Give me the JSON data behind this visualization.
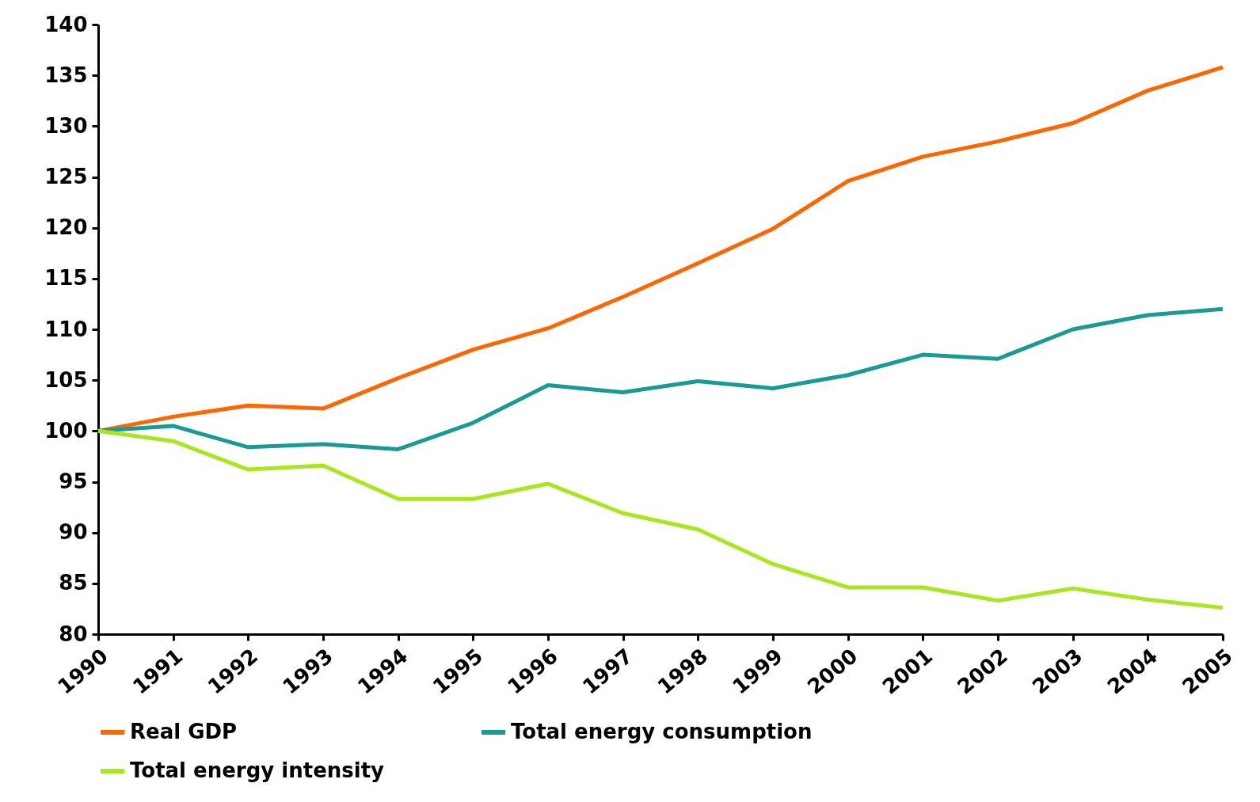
{
  "chart_data": {
    "type": "line",
    "x": [
      1990,
      1991,
      1992,
      1993,
      1994,
      1995,
      1996,
      1997,
      1998,
      1999,
      2000,
      2001,
      2002,
      2003,
      2004,
      2005
    ],
    "xlim": [
      1990,
      2005
    ],
    "xticks": [
      1990,
      1991,
      1992,
      1993,
      1994,
      1995,
      1996,
      1997,
      1998,
      1999,
      2000,
      2001,
      2002,
      2003,
      2004,
      2005
    ],
    "ylim": [
      80,
      140
    ],
    "yticks": [
      80,
      85,
      90,
      95,
      100,
      105,
      110,
      115,
      120,
      125,
      130,
      135,
      140
    ],
    "grid": false,
    "legend": "bottom",
    "marker": "none",
    "line_style": "solid",
    "series": [
      {
        "name": "Real GDP",
        "color": "#ff6600",
        "values": [
          100,
          101.4,
          102.5,
          102.2,
          105.2,
          108.0,
          110.1,
          113.2,
          116.5,
          119.9,
          124.6,
          127.0,
          128.5,
          130.3,
          133.5,
          135.8
        ]
      },
      {
        "name": "Total energy consumption",
        "color": "#1a9a94",
        "values": [
          100,
          100.5,
          98.4,
          98.7,
          98.2,
          100.8,
          104.5,
          103.8,
          104.9,
          104.2,
          105.5,
          107.5,
          107.1,
          110.0,
          111.4,
          112.0
        ]
      },
      {
        "name": "Total energy intensity",
        "color": "#a8e61d",
        "values": [
          100,
          99.0,
          96.2,
          96.6,
          93.3,
          93.3,
          94.8,
          91.9,
          90.3,
          86.9,
          84.6,
          84.6,
          83.3,
          84.5,
          83.4,
          82.6
        ]
      }
    ]
  }
}
